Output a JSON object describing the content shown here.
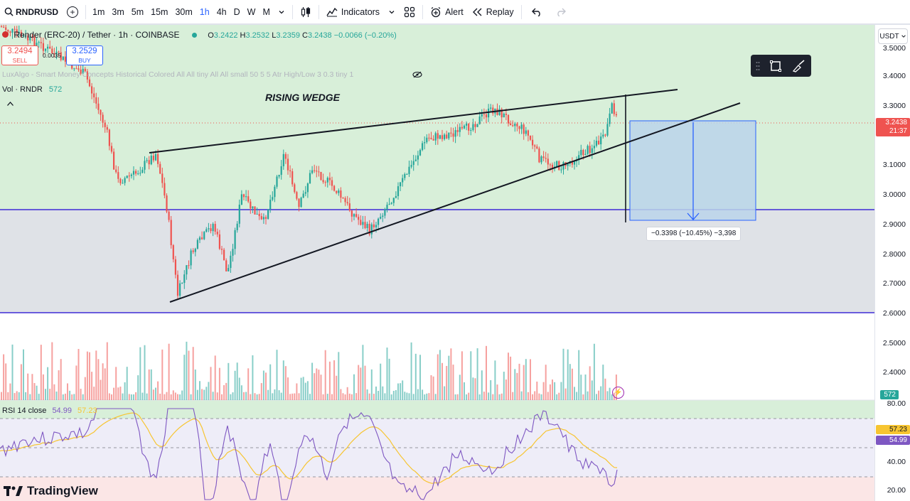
{
  "toolbar": {
    "symbol": "RNDRUSD",
    "intervals": [
      "1m",
      "3m",
      "5m",
      "15m",
      "30m",
      "1h",
      "4h",
      "D",
      "W",
      "M"
    ],
    "active_interval": "1h",
    "indicators_label": "Indicators",
    "alert_label": "Alert",
    "replay_label": "Replay"
  },
  "legend": {
    "title": "Render (ERC-20) / Tether · 1h · COINBASE",
    "open_label": "O",
    "open": "3.2422",
    "high_label": "H",
    "high": "3.2532",
    "low_label": "L",
    "low": "3.2359",
    "close_label": "C",
    "close": "3.2438",
    "change": "−0.0066 (−0.20%)",
    "sell_price": "3.2494",
    "sell_label": "SELL",
    "spread": "0.0035",
    "buy_price": "3.2529",
    "buy_label": "BUY",
    "indicator_line": "LuxAlgo - Smart Money Concepts Historical Colored All All tiny All All small 50 5 5 Atr High/Low 3 0.3 tiny 1",
    "volume_label": "Vol · RNDR",
    "volume_value": "572"
  },
  "annotations": {
    "pattern_label": "RISING WEDGE",
    "measure_label": "−0.3398 (−10.45%) −3,398"
  },
  "price_axis": {
    "currency": "USDT",
    "labels": [
      "3.5000",
      "3.4000",
      "3.3000",
      "3.1000",
      "3.0000",
      "2.9000",
      "2.8000",
      "2.7000",
      "2.6000",
      "2.5000",
      "2.4000"
    ],
    "current_price": "3.2438",
    "countdown": "21:37",
    "volume_tag": "572",
    "rsi_labels": [
      "80.00",
      "40.00",
      "20.00"
    ],
    "rsi_ma_tag": "57.23",
    "rsi_tag": "54.99"
  },
  "rsi": {
    "label": "RSI 14 close",
    "value": "54.99",
    "ma_value": "57.23"
  },
  "branding": {
    "logo_text": "TradingView"
  },
  "colors": {
    "up": "#26a69a",
    "down": "#ef5350",
    "accent": "#2962ff",
    "zone_green": "#d8efd9",
    "zone_grey": "#dfe2e7",
    "purple": "#3f2bd6",
    "rsi_line": "#7e57c2",
    "rsi_ma": "#f7c531"
  }
}
